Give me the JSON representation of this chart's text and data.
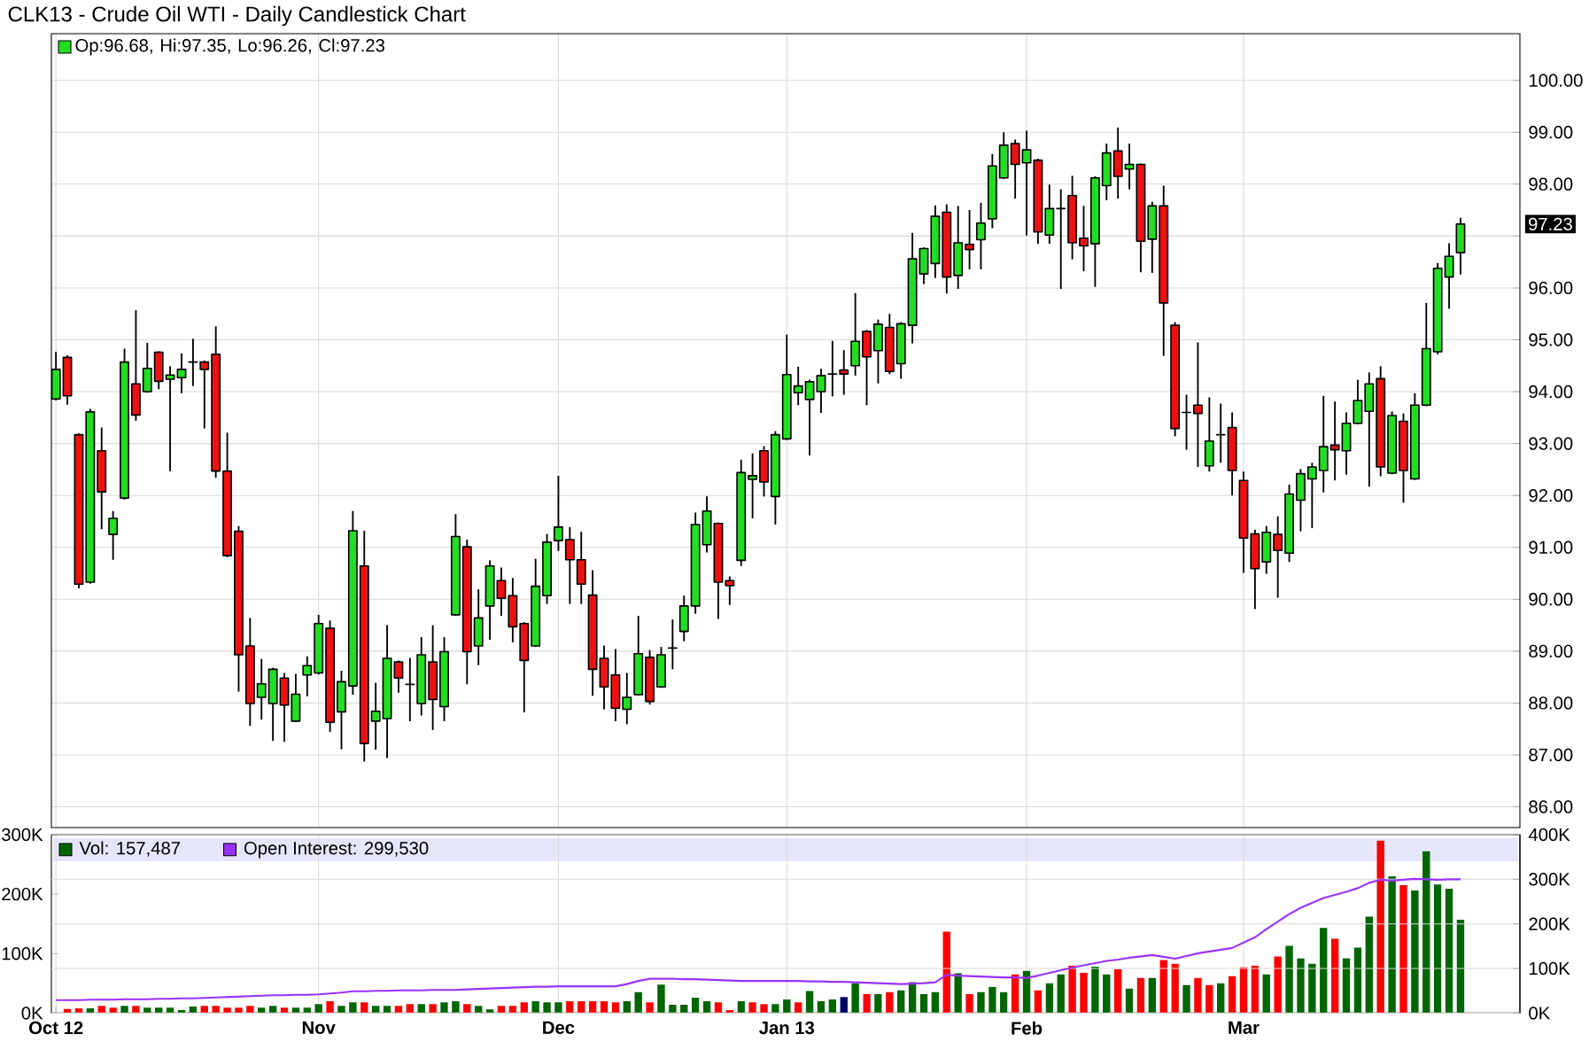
{
  "chart_data": [
    {
      "type": "candlestick",
      "title": "CLK13 - Crude Oil WTI - Daily Candlestick Chart",
      "categories": [
        null,
        null,
        null,
        null,
        null,
        null,
        null,
        null,
        null,
        null,
        null,
        null,
        null,
        null,
        null,
        null,
        null,
        null,
        null,
        null,
        null,
        null,
        null,
        null,
        null,
        null,
        null,
        null,
        null,
        null,
        null,
        null,
        null,
        null,
        null,
        null,
        null,
        null,
        null,
        null,
        null,
        null,
        null,
        null,
        null,
        null,
        null,
        null,
        null,
        null,
        null,
        null,
        null,
        null,
        null,
        null,
        null,
        null,
        null,
        null,
        null,
        null,
        null,
        null,
        null,
        null,
        null,
        null,
        null,
        null,
        null,
        null,
        null,
        null,
        null,
        null,
        null,
        null,
        null,
        null,
        null,
        null,
        null,
        null,
        null,
        null,
        null,
        null,
        null,
        null,
        null,
        null,
        null,
        null,
        null,
        null,
        null,
        null,
        null,
        null,
        null,
        null,
        null,
        null,
        null,
        null,
        null,
        null,
        null,
        null,
        null,
        null,
        null,
        null,
        null,
        null,
        null,
        null,
        null,
        null,
        null,
        null,
        null,
        null
      ],
      "ohlc": [
        [
          93.86,
          94.77,
          93.83,
          94.43
        ],
        [
          94.66,
          94.7,
          93.75,
          93.92
        ],
        [
          93.17,
          93.2,
          90.21,
          90.29
        ],
        [
          90.33,
          93.67,
          90.3,
          93.61
        ],
        [
          92.86,
          93.31,
          91.35,
          92.07
        ],
        [
          91.25,
          91.7,
          90.76,
          91.56
        ],
        [
          91.95,
          94.83,
          91.92,
          94.57
        ],
        [
          94.15,
          95.57,
          93.44,
          93.55
        ],
        [
          94.0,
          94.94,
          93.98,
          94.45
        ],
        [
          94.76,
          94.78,
          94.05,
          94.2
        ],
        [
          94.24,
          94.49,
          92.47,
          94.32
        ],
        [
          94.27,
          94.74,
          93.97,
          94.43
        ],
        [
          94.57,
          95.02,
          94.11,
          94.57
        ],
        [
          94.57,
          94.6,
          93.29,
          94.43
        ],
        [
          94.72,
          95.26,
          92.34,
          92.47
        ],
        [
          92.47,
          93.21,
          90.81,
          90.84
        ],
        [
          91.31,
          91.41,
          88.22,
          88.93
        ],
        [
          89.1,
          89.64,
          87.56,
          87.99
        ],
        [
          88.11,
          88.85,
          87.68,
          88.37
        ],
        [
          87.99,
          88.68,
          87.27,
          88.65
        ],
        [
          88.48,
          88.58,
          87.25,
          87.96
        ],
        [
          87.65,
          88.56,
          87.63,
          88.17
        ],
        [
          88.54,
          88.9,
          88.13,
          88.72
        ],
        [
          88.58,
          89.7,
          88.55,
          89.53
        ],
        [
          89.44,
          89.59,
          87.44,
          87.63
        ],
        [
          87.83,
          88.62,
          87.11,
          88.41
        ],
        [
          88.33,
          91.7,
          88.16,
          91.32
        ],
        [
          90.64,
          91.32,
          86.87,
          87.22
        ],
        [
          87.65,
          88.39,
          87.1,
          87.84
        ],
        [
          87.7,
          89.5,
          86.94,
          88.86
        ],
        [
          88.79,
          88.82,
          88.2,
          88.48
        ],
        [
          88.36,
          88.87,
          87.65,
          88.36
        ],
        [
          87.99,
          89.27,
          87.76,
          88.93
        ],
        [
          88.79,
          89.5,
          87.48,
          88.07
        ],
        [
          87.93,
          89.27,
          87.65,
          88.99
        ],
        [
          89.7,
          91.64,
          89.68,
          91.21
        ],
        [
          91.01,
          91.15,
          88.36,
          88.99
        ],
        [
          89.1,
          90.19,
          88.73,
          89.64
        ],
        [
          89.87,
          90.75,
          89.22,
          90.64
        ],
        [
          90.36,
          90.61,
          89.68,
          90.02
        ],
        [
          90.07,
          90.41,
          89.17,
          89.47
        ],
        [
          89.53,
          89.56,
          87.82,
          88.82
        ],
        [
          89.1,
          90.78,
          89.08,
          90.25
        ],
        [
          90.07,
          91.26,
          89.91,
          91.1
        ],
        [
          91.13,
          92.38,
          90.93,
          91.39
        ],
        [
          91.15,
          91.39,
          89.91,
          90.76
        ],
        [
          90.76,
          91.3,
          89.91,
          90.29
        ],
        [
          90.08,
          90.56,
          88.14,
          88.65
        ],
        [
          88.86,
          89.11,
          87.88,
          88.31
        ],
        [
          88.54,
          89.04,
          87.65,
          87.9
        ],
        [
          87.88,
          88.58,
          87.59,
          88.11
        ],
        [
          88.16,
          89.68,
          88.14,
          88.95
        ],
        [
          88.88,
          89.02,
          87.97,
          88.03
        ],
        [
          88.31,
          89.08,
          88.29,
          88.93
        ],
        [
          89.06,
          89.61,
          88.65,
          89.06
        ],
        [
          89.38,
          90.07,
          89.19,
          89.87
        ],
        [
          89.87,
          91.67,
          89.72,
          91.44
        ],
        [
          91.05,
          91.98,
          90.9,
          91.7
        ],
        [
          91.46,
          91.48,
          89.62,
          90.33
        ],
        [
          90.36,
          90.44,
          89.89,
          90.26
        ],
        [
          90.75,
          92.69,
          90.64,
          92.44
        ],
        [
          92.31,
          92.81,
          91.56,
          92.38
        ],
        [
          92.86,
          92.95,
          91.98,
          92.26
        ],
        [
          91.98,
          93.24,
          91.44,
          93.17
        ],
        [
          93.09,
          95.1,
          93.07,
          94.33
        ],
        [
          93.98,
          94.48,
          93.74,
          94.11
        ],
        [
          93.85,
          94.23,
          92.77,
          94.19
        ],
        [
          94.0,
          94.44,
          93.59,
          94.31
        ],
        [
          94.34,
          94.98,
          93.91,
          94.34
        ],
        [
          94.42,
          94.8,
          93.94,
          94.34
        ],
        [
          94.5,
          95.9,
          94.31,
          94.97
        ],
        [
          95.16,
          95.19,
          93.74,
          94.67
        ],
        [
          94.79,
          95.39,
          94.16,
          95.3
        ],
        [
          95.24,
          95.5,
          94.34,
          94.39
        ],
        [
          94.54,
          95.34,
          94.25,
          95.31
        ],
        [
          95.28,
          97.06,
          94.93,
          96.56
        ],
        [
          96.27,
          96.78,
          96.07,
          96.76
        ],
        [
          96.47,
          97.59,
          96.19,
          97.38
        ],
        [
          97.46,
          97.61,
          95.89,
          96.21
        ],
        [
          96.24,
          97.58,
          95.98,
          96.87
        ],
        [
          96.84,
          97.5,
          96.36,
          96.74
        ],
        [
          96.93,
          97.64,
          96.36,
          97.25
        ],
        [
          97.33,
          98.58,
          97.15,
          98.35
        ],
        [
          98.12,
          99.0,
          98.1,
          98.75
        ],
        [
          98.78,
          98.86,
          97.72,
          98.38
        ],
        [
          98.41,
          99.03,
          97.01,
          98.66
        ],
        [
          98.46,
          98.49,
          96.85,
          97.08
        ],
        [
          97.02,
          97.99,
          96.85,
          97.53
        ],
        [
          97.53,
          97.9,
          95.98,
          97.53
        ],
        [
          97.78,
          98.16,
          96.55,
          96.87
        ],
        [
          96.96,
          97.58,
          96.32,
          96.81
        ],
        [
          96.85,
          98.15,
          96.02,
          98.12
        ],
        [
          97.97,
          98.78,
          97.69,
          98.6
        ],
        [
          98.64,
          99.09,
          97.72,
          98.15
        ],
        [
          98.29,
          98.78,
          97.9,
          98.38
        ],
        [
          98.38,
          98.4,
          96.3,
          96.9
        ],
        [
          96.94,
          97.66,
          96.29,
          97.58
        ],
        [
          97.58,
          97.97,
          94.69,
          95.71
        ],
        [
          95.28,
          95.34,
          93.14,
          93.29
        ],
        [
          93.6,
          93.94,
          92.88,
          93.6
        ],
        [
          93.74,
          94.95,
          92.55,
          93.58
        ],
        [
          92.57,
          93.89,
          92.46,
          93.05
        ],
        [
          93.17,
          93.77,
          92.63,
          93.17
        ],
        [
          93.31,
          93.6,
          92.0,
          92.48
        ],
        [
          92.29,
          92.46,
          90.51,
          91.18
        ],
        [
          91.26,
          91.34,
          89.81,
          90.59
        ],
        [
          90.72,
          91.41,
          90.49,
          91.29
        ],
        [
          91.25,
          91.6,
          90.03,
          90.94
        ],
        [
          90.89,
          92.21,
          90.72,
          92.03
        ],
        [
          91.91,
          92.51,
          91.31,
          92.42
        ],
        [
          92.32,
          92.63,
          91.37,
          92.55
        ],
        [
          92.48,
          93.92,
          92.06,
          92.94
        ],
        [
          92.97,
          93.81,
          92.29,
          92.88
        ],
        [
          92.86,
          93.6,
          92.4,
          93.39
        ],
        [
          93.39,
          94.23,
          93.37,
          93.83
        ],
        [
          93.62,
          94.37,
          92.17,
          94.15
        ],
        [
          94.25,
          94.49,
          92.37,
          92.55
        ],
        [
          92.43,
          93.62,
          92.41,
          93.54
        ],
        [
          93.43,
          93.58,
          91.86,
          92.48
        ],
        [
          92.32,
          93.97,
          92.3,
          93.74
        ],
        [
          93.74,
          95.71,
          93.72,
          94.83
        ],
        [
          94.77,
          96.48,
          94.72,
          96.38
        ],
        [
          96.21,
          96.86,
          95.6,
          96.61
        ],
        [
          96.68,
          97.35,
          96.26,
          97.23
        ]
      ],
      "colors": [
        "#22dd22",
        "#ee1111",
        "#ee1111",
        "#22dd22",
        "#ee1111",
        "#22dd22",
        "#22dd22",
        "#ee1111",
        "#22dd22",
        "#ee1111",
        "#22dd22",
        "#22dd22",
        "#000000",
        "#ee1111",
        "#ee1111",
        "#ee1111",
        "#ee1111",
        "#ee1111",
        "#22dd22",
        "#22dd22",
        "#ee1111",
        "#22dd22",
        "#22dd22",
        "#22dd22",
        "#ee1111",
        "#22dd22",
        "#22dd22",
        "#ee1111",
        "#22dd22",
        "#22dd22",
        "#ee1111",
        "#000000",
        "#22dd22",
        "#ee1111",
        "#22dd22",
        "#22dd22",
        "#ee1111",
        "#22dd22",
        "#22dd22",
        "#ee1111",
        "#ee1111",
        "#ee1111",
        "#22dd22",
        "#22dd22",
        "#22dd22",
        "#ee1111",
        "#ee1111",
        "#ee1111",
        "#ee1111",
        "#ee1111",
        "#22dd22",
        "#22dd22",
        "#ee1111",
        "#22dd22",
        "#000000",
        "#22dd22",
        "#22dd22",
        "#22dd22",
        "#ee1111",
        "#ee1111",
        "#22dd22",
        "#22dd22",
        "#ee1111",
        "#22dd22",
        "#22dd22",
        "#22dd22",
        "#22dd22",
        "#22dd22",
        "#000000",
        "#ee1111",
        "#22dd22",
        "#ee1111",
        "#22dd22",
        "#ee1111",
        "#22dd22",
        "#22dd22",
        "#22dd22",
        "#22dd22",
        "#ee1111",
        "#22dd22",
        "#ee1111",
        "#22dd22",
        "#22dd22",
        "#22dd22",
        "#ee1111",
        "#22dd22",
        "#ee1111",
        "#22dd22",
        "#000000",
        "#ee1111",
        "#ee1111",
        "#22dd22",
        "#22dd22",
        "#ee1111",
        "#22dd22",
        "#ee1111",
        "#22dd22",
        "#ee1111",
        "#ee1111",
        "#000000",
        "#ee1111",
        "#22dd22",
        "#000000",
        "#ee1111",
        "#ee1111",
        "#ee1111",
        "#22dd22",
        "#ee1111",
        "#22dd22",
        "#22dd22",
        "#22dd22",
        "#22dd22",
        "#ee1111",
        "#22dd22",
        "#22dd22",
        "#22dd22",
        "#ee1111",
        "#22dd22",
        "#ee1111",
        "#22dd22",
        "#22dd22",
        "#22dd22",
        "#22dd22",
        "#22dd22"
      ],
      "ylim": [
        85.6,
        100.9
      ],
      "yticks": [
        {
          "value": 86,
          "label": "86.00"
        },
        {
          "value": 87,
          "label": "87.00"
        },
        {
          "value": 88,
          "label": "88.00"
        },
        {
          "value": 89,
          "label": "89.00"
        },
        {
          "value": 90,
          "label": "90.00"
        },
        {
          "value": 91,
          "label": "91.00"
        },
        {
          "value": 92,
          "label": "92.00"
        },
        {
          "value": 93,
          "label": "93.00"
        },
        {
          "value": 94,
          "label": "94.00"
        },
        {
          "value": 95,
          "label": "95.00"
        },
        {
          "value": 96,
          "label": "96.00"
        },
        {
          "value": 97,
          "label": null
        },
        {
          "value": 98,
          "label": "98.00"
        },
        {
          "value": 99,
          "label": "99.00"
        },
        {
          "value": 100,
          "label": "100.00"
        }
      ],
      "grid": true,
      "tick_labels": "y",
      "annotations": [
        "Op:96.68, Hi:97.35, Lo:96.26, Cl:97.23",
        "97.23"
      ]
    },
    {
      "type": "bar",
      "categories": [
        "Oct 12",
        null,
        null,
        null,
        null,
        null,
        null,
        null,
        null,
        null,
        null,
        null,
        null,
        null,
        null,
        null,
        null,
        null,
        null,
        null,
        null,
        null,
        null,
        "Nov",
        null,
        null,
        null,
        null,
        null,
        null,
        null,
        null,
        null,
        null,
        null,
        null,
        null,
        null,
        null,
        null,
        null,
        null,
        null,
        null,
        "Dec",
        null,
        null,
        null,
        null,
        null,
        null,
        null,
        null,
        null,
        null,
        null,
        null,
        null,
        null,
        null,
        null,
        null,
        null,
        null,
        "Jan 13",
        null,
        null,
        null,
        null,
        null,
        null,
        null,
        null,
        null,
        null,
        null,
        null,
        null,
        null,
        null,
        null,
        null,
        null,
        null,
        null,
        "Feb",
        null,
        null,
        null,
        null,
        null,
        null,
        null,
        null,
        null,
        null,
        null,
        null,
        null,
        null,
        null,
        null,
        null,
        null,
        "Mar",
        null,
        null,
        null,
        null,
        null,
        null,
        null,
        null,
        null,
        null,
        null,
        null,
        null,
        null,
        null,
        null,
        null,
        null,
        null
      ],
      "series": [
        {
          "name": "Vol: 157,487",
          "color": "#006600",
          "values": [
            null,
            7,
            8,
            8,
            12,
            9,
            12,
            12,
            9,
            9,
            9,
            5,
            11,
            12,
            12,
            9,
            9,
            12,
            9,
            12,
            9,
            9,
            9,
            15,
            20,
            12,
            18,
            18,
            12,
            12,
            12,
            15,
            15,
            15,
            18,
            20,
            15,
            12,
            6,
            12,
            12,
            18,
            20,
            18,
            18,
            20,
            20,
            20,
            20,
            18,
            20,
            35,
            18,
            48,
            14,
            14,
            26,
            20,
            18,
            5,
            20,
            18,
            15,
            15,
            23,
            18,
            37,
            20,
            23,
            27,
            50,
            32,
            32,
            35,
            38,
            52,
            32,
            35,
            137,
            67,
            32,
            35,
            44,
            35,
            65,
            71,
            38,
            50,
            65,
            80,
            68,
            78,
            65,
            74,
            41,
            59,
            59,
            89,
            83,
            47,
            59,
            47,
            50,
            62,
            77,
            80,
            65,
            95,
            113,
            92,
            83,
            143,
            125,
            92,
            110,
            162,
            290,
            230,
            215,
            206,
            272,
            216,
            209,
            157
          ],
          "colors": [
            "#006600",
            "#ff0000",
            "#ff0000",
            "#006600",
            "#ff0000",
            "#ff0000",
            "#006600",
            "#ff0000",
            "#006600",
            "#006600",
            "#006600",
            "#006600",
            "#006600",
            "#ff0000",
            "#ff0000",
            "#ff0000",
            "#ff0000",
            "#ff0000",
            "#006600",
            "#006600",
            "#ff0000",
            "#006600",
            "#006600",
            "#006600",
            "#ff0000",
            "#006600",
            "#006600",
            "#ff0000",
            "#006600",
            "#006600",
            "#ff0000",
            "#ff0000",
            "#006600",
            "#ff0000",
            "#006600",
            "#006600",
            "#ff0000",
            "#006600",
            "#006600",
            "#ff0000",
            "#ff0000",
            "#ff0000",
            "#006600",
            "#006600",
            "#006600",
            "#ff0000",
            "#ff0000",
            "#ff0000",
            "#ff0000",
            "#ff0000",
            "#006600",
            "#006600",
            "#ff0000",
            "#006600",
            "#006600",
            "#006600",
            "#006600",
            "#006600",
            "#ff0000",
            "#ff0000",
            "#006600",
            "#ff0000",
            "#ff0000",
            "#006600",
            "#006600",
            "#ff0000",
            "#006600",
            "#006600",
            "#006600",
            "#000066",
            "#006600",
            "#ff0000",
            "#006600",
            "#ff0000",
            "#006600",
            "#006600",
            "#006600",
            "#006600",
            "#ff0000",
            "#006600",
            "#ff0000",
            "#006600",
            "#006600",
            "#006600",
            "#ff0000",
            "#006600",
            "#ff0000",
            "#006600",
            "#006600",
            "#ff0000",
            "#ff0000",
            "#006600",
            "#006600",
            "#ff0000",
            "#006600",
            "#ff0000",
            "#006600",
            "#ff0000",
            "#ff0000",
            "#006600",
            "#ff0000",
            "#ff0000",
            "#006600",
            "#ff0000",
            "#ff0000",
            "#ff0000",
            "#006600",
            "#ff0000",
            "#006600",
            "#006600",
            "#006600",
            "#006600",
            "#ff0000",
            "#006600",
            "#006600",
            "#006600",
            "#ff0000",
            "#006600",
            "#ff0000",
            "#006600",
            "#006600",
            "#006600",
            "#006600",
            "#006600"
          ]
        },
        {
          "name": "Open Interest: 299,530",
          "type": "line",
          "axis": "y2",
          "color": "#9933ff",
          "values": [
            29,
            29,
            29,
            30,
            30,
            30,
            31,
            31,
            31,
            32,
            32,
            33,
            33,
            34,
            35,
            36,
            37,
            38,
            39,
            40,
            40,
            41,
            41,
            42,
            44,
            46,
            49,
            49,
            50,
            50,
            51,
            51,
            51,
            52,
            52,
            52,
            53,
            54,
            55,
            56,
            57,
            58,
            59,
            59,
            60,
            60,
            60,
            60,
            60,
            60,
            65,
            72,
            77,
            77,
            77,
            76,
            76,
            75,
            74,
            73,
            72,
            72,
            72,
            72,
            72,
            72,
            71,
            71,
            70,
            70,
            69,
            68,
            67,
            66,
            65,
            66,
            67,
            69,
            86,
            84,
            83,
            82,
            81,
            80,
            80,
            79,
            84,
            90,
            96,
            102,
            107,
            112,
            117,
            120,
            124,
            127,
            130,
            126,
            122,
            128,
            134,
            138,
            142,
            146,
            158,
            170,
            188,
            205,
            222,
            236,
            247,
            258,
            265,
            272,
            280,
            292,
            299,
            297,
            299,
            301,
            300,
            299,
            300,
            300
          ]
        }
      ],
      "ylim": [
        0,
        300
      ],
      "yticks": [
        {
          "value": 0,
          "label": "0K"
        },
        {
          "value": 100,
          "label": "100K"
        },
        {
          "value": 200,
          "label": "200K"
        },
        {
          "value": 300,
          "label": "300K"
        }
      ],
      "y2lim": [
        0,
        400
      ],
      "y2ticks": [
        {
          "value": 0,
          "label": "0K"
        },
        {
          "value": 100,
          "label": "100K"
        },
        {
          "value": 200,
          "label": "200K"
        },
        {
          "value": 300,
          "label": "300K"
        },
        {
          "value": 400,
          "label": "400K"
        }
      ],
      "grid": true,
      "legend": "top left"
    }
  ]
}
